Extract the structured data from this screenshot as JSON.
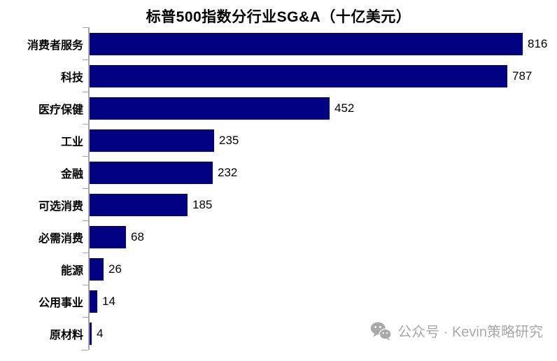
{
  "chart_data": {
    "type": "bar",
    "orientation": "horizontal",
    "title": "标普500指数分行业SG&A（十亿美元）",
    "categories": [
      "消费者服务",
      "科技",
      "医疗保健",
      "工业",
      "金融",
      "可选消费",
      "必需消费",
      "能源",
      "公用事业",
      "原材料"
    ],
    "values": [
      816,
      787,
      452,
      235,
      232,
      185,
      68,
      26,
      14,
      4
    ],
    "xlabel": "",
    "ylabel": "",
    "xlim": [
      0,
      875
    ],
    "grid": false,
    "legend": "none",
    "value_labels": true,
    "bar_color": "#010182",
    "axis_color": "#a6a6a6",
    "text_color": "#000000"
  },
  "watermark": {
    "icon": "wechat-icon",
    "text": "公众号 · Kevin策略研究",
    "color": "#a9a9a9"
  }
}
